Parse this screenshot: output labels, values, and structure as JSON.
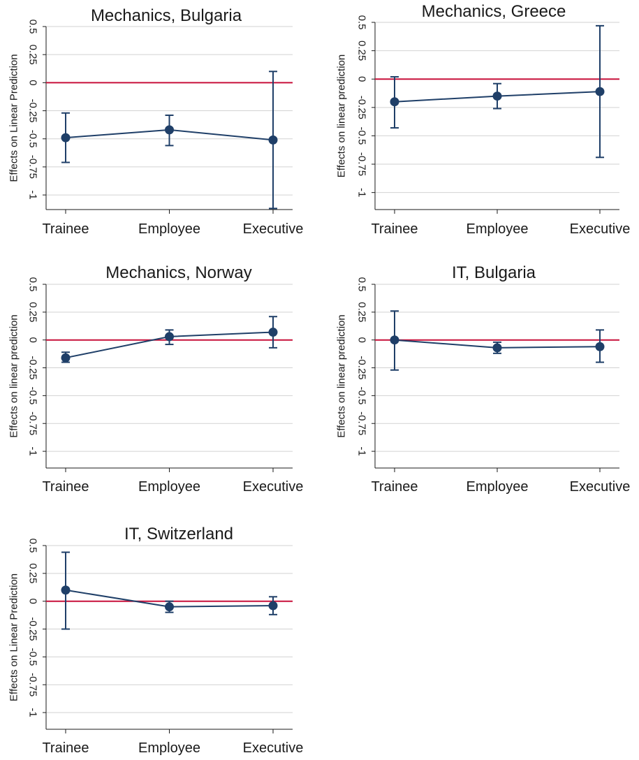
{
  "chart_data": [
    {
      "type": "line",
      "title": "Mechanics, Bulgaria",
      "xlabel": "",
      "ylabel": "Effects on Linear Prediction",
      "categories": [
        "Trainee",
        "Employee",
        "Executive"
      ],
      "y_ticks": [
        0.5,
        0.25,
        0,
        -0.25,
        -0.5,
        -0.75,
        -1
      ],
      "y_tick_labels": [
        "0.5",
        "0.25",
        "0",
        "-0.25",
        "-0.5",
        "-0.75",
        "-1"
      ],
      "ylim": [
        -1.13,
        0.5
      ],
      "grid": true,
      "reference_line": 0,
      "series": [
        {
          "values": [
            -0.49,
            -0.42,
            -0.51
          ],
          "ci_low": [
            -0.71,
            -0.56,
            -1.12
          ],
          "ci_high": [
            -0.27,
            -0.29,
            0.1
          ]
        }
      ]
    },
    {
      "type": "line",
      "title": "Mechanics, Greece",
      "xlabel": "",
      "ylabel": "Effects on linear prediction",
      "categories": [
        "Trainee",
        "Employee",
        "Executive"
      ],
      "y_ticks": [
        0.5,
        0.25,
        0,
        -0.25,
        -0.5,
        -0.75,
        -1
      ],
      "y_tick_labels": [
        "0.5",
        "0.25",
        "0",
        "-0.25",
        "-0.5",
        "-0.75",
        "-1"
      ],
      "ylim": [
        -1.15,
        0.5
      ],
      "grid": true,
      "reference_line": 0,
      "series": [
        {
          "values": [
            -0.2,
            -0.15,
            -0.11
          ],
          "ci_low": [
            -0.43,
            -0.26,
            -0.69
          ],
          "ci_high": [
            0.02,
            -0.04,
            0.47
          ]
        }
      ]
    },
    {
      "type": "line",
      "title": "Mechanics, Norway",
      "xlabel": "",
      "ylabel": "Effects on linear prediction",
      "categories": [
        "Trainee",
        "Employee",
        "Executive"
      ],
      "y_ticks": [
        0.5,
        0.25,
        0,
        -0.25,
        -0.5,
        -0.75,
        -1
      ],
      "y_tick_labels": [
        "0.5",
        "0.25",
        "0",
        "-0.25",
        "-0.5",
        "-0.75",
        "-1"
      ],
      "ylim": [
        -1.15,
        0.5
      ],
      "grid": true,
      "reference_line": 0,
      "series": [
        {
          "values": [
            -0.16,
            0.03,
            0.07
          ],
          "ci_low": [
            -0.2,
            -0.04,
            -0.07
          ],
          "ci_high": [
            -0.11,
            0.09,
            0.21
          ]
        }
      ]
    },
    {
      "type": "line",
      "title": "IT, Bulgaria",
      "xlabel": "",
      "ylabel": "Effects on linear prediction",
      "categories": [
        "Trainee",
        "Employee",
        "Executive"
      ],
      "y_ticks": [
        0.5,
        0.25,
        0,
        -0.25,
        -0.5,
        -0.75,
        -1
      ],
      "y_tick_labels": [
        "0.5",
        "0.25",
        "0",
        "-0.25",
        "-0.5",
        "-0.75",
        "-1"
      ],
      "ylim": [
        -1.15,
        0.5
      ],
      "grid": true,
      "reference_line": 0,
      "series": [
        {
          "values": [
            0,
            -0.07,
            -0.06
          ],
          "ci_low": [
            -0.27,
            -0.12,
            -0.2
          ],
          "ci_high": [
            0.26,
            -0.02,
            0.09
          ]
        }
      ]
    },
    {
      "type": "line",
      "title": "IT, Switzerland",
      "xlabel": "",
      "ylabel": "Effects on Linear Prediction",
      "categories": [
        "Trainee",
        "Employee",
        "Executive"
      ],
      "y_ticks": [
        0.5,
        0.25,
        0,
        -0.25,
        -0.5,
        -0.75,
        -1
      ],
      "y_tick_labels": [
        "0.5",
        "0.25",
        "0",
        "-0.25",
        "-0.5",
        "-0.75",
        "-1"
      ],
      "ylim": [
        -1.15,
        0.5
      ],
      "grid": true,
      "reference_line": 0,
      "series": [
        {
          "values": [
            0.1,
            -0.05,
            -0.04
          ],
          "ci_low": [
            -0.25,
            -0.1,
            -0.12
          ],
          "ci_high": [
            0.44,
            0.0,
            0.04
          ]
        }
      ]
    }
  ],
  "colors": {
    "series": "#1f3f68",
    "reference_line": "#c8103a",
    "grid": "#d2d2d2",
    "axis": "#1a1a1a",
    "text": "#1a1a1a"
  }
}
